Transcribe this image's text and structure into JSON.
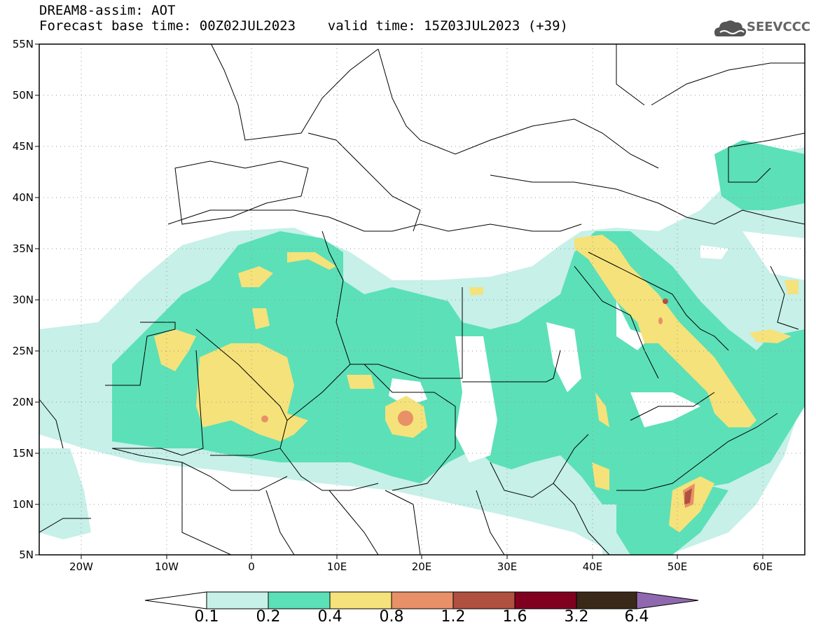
{
  "header": {
    "line1": "DREAM8-assim: AOT",
    "line2": "Forecast base time: 00Z02JUL2023    valid time: 15Z03JUL2023 (+39)"
  },
  "logo": {
    "text": "SEEVCCC",
    "icon": "cloud-icon"
  },
  "axes": {
    "y_labels": [
      "55N",
      "50N",
      "45N",
      "40N",
      "35N",
      "30N",
      "25N",
      "20N",
      "15N",
      "10N",
      "5N"
    ],
    "x_labels": [
      "20W",
      "10W",
      "0",
      "10E",
      "20E",
      "30E",
      "40E",
      "50E",
      "60E"
    ]
  },
  "colorbar": {
    "levels": [
      "0.1",
      "0.2",
      "0.4",
      "0.8",
      "1.2",
      "1.6",
      "3.2",
      "6.4"
    ],
    "colors": [
      "#c6f0e8",
      "#5ce0b8",
      "#f5e27a",
      "#e89068",
      "#b05040",
      "#800020",
      "#3a2818",
      "#9068b0"
    ]
  }
}
